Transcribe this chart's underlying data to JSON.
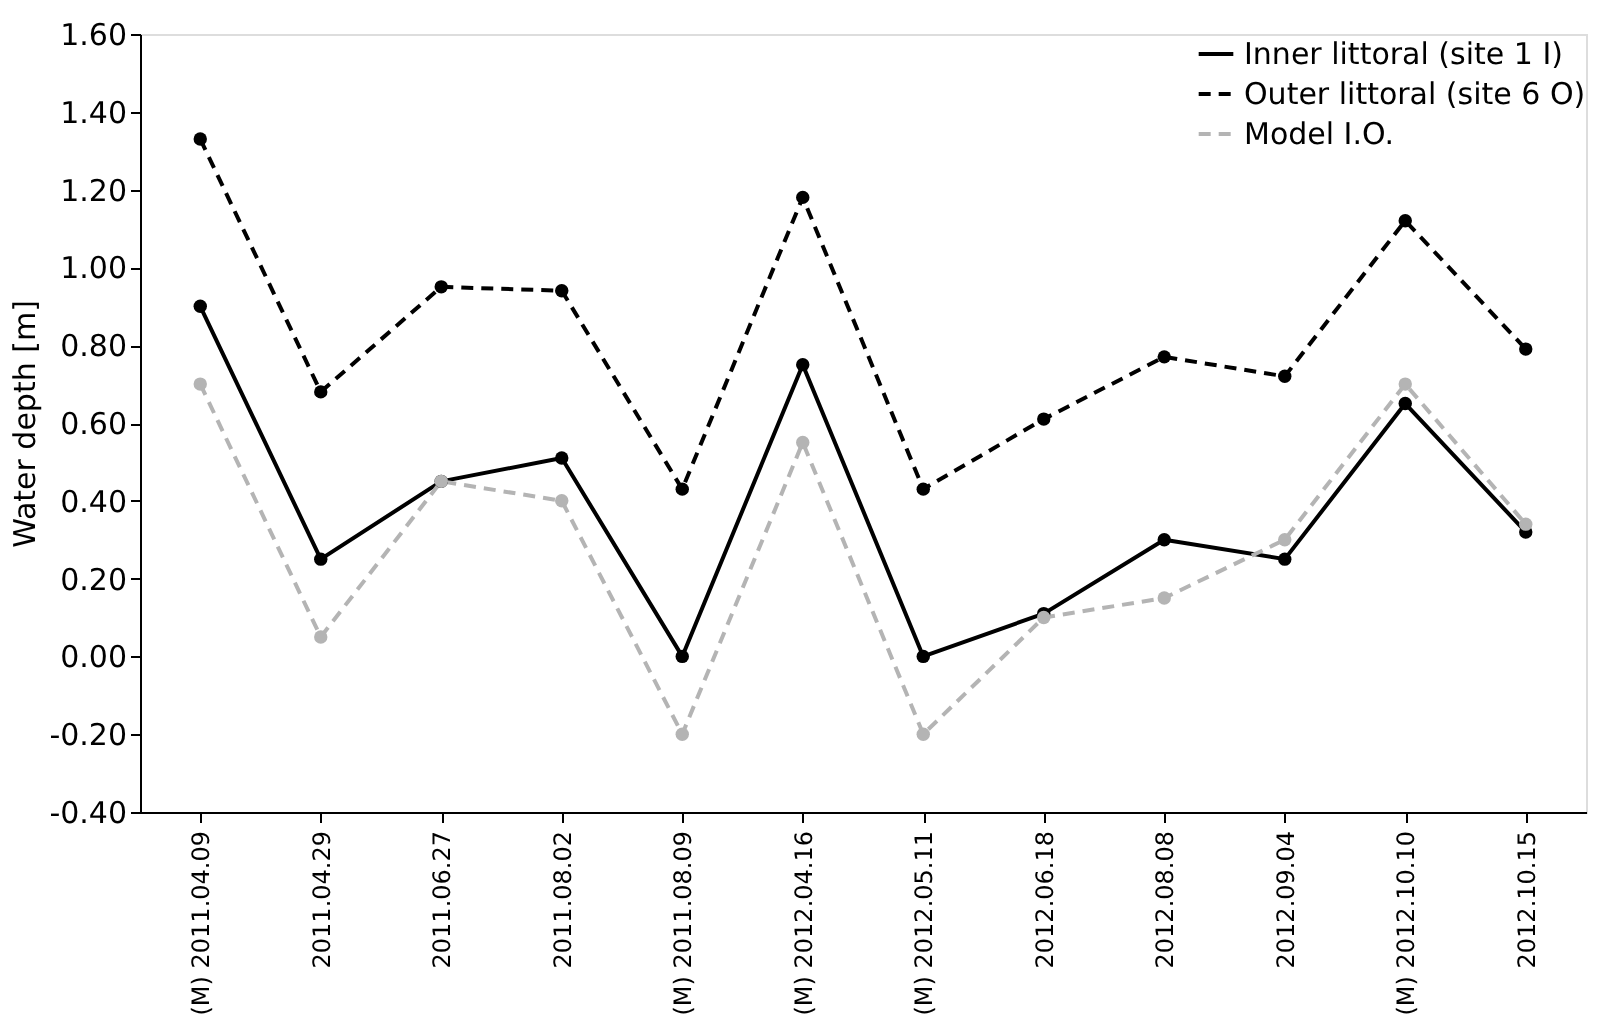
{
  "chart_data": {
    "type": "line",
    "ylabel": "Water depth [m]",
    "categories": [
      "(M) 2011.04.09",
      "2011.04.29",
      "2011.06.27",
      "2011.08.02",
      "(M) 2011.08.09",
      "(M) 2012.04.16",
      "(M) 2012.05.11",
      "2012.06.18",
      "2012.08.08",
      "2012.09.04",
      "(M) 2012.10.10",
      "2012.10.15"
    ],
    "series": [
      {
        "name": "Inner littoral (site 1 I)",
        "color": "#000000",
        "line_style": "solid",
        "values": [
          0.9,
          0.25,
          0.45,
          0.51,
          0.0,
          0.75,
          0.0,
          0.11,
          0.3,
          0.25,
          0.65,
          0.32
        ]
      },
      {
        "name": "Outer littoral (site 6 O)",
        "color": "#000000",
        "line_style": "dashed",
        "values": [
          1.33,
          0.68,
          0.95,
          0.94,
          0.43,
          1.18,
          0.43,
          0.61,
          0.77,
          0.72,
          1.12,
          0.79
        ]
      },
      {
        "name": "Model I.O.",
        "color": "#b4b4b4",
        "line_style": "dashed",
        "values": [
          0.7,
          0.05,
          0.45,
          0.4,
          -0.2,
          0.55,
          -0.2,
          0.1,
          0.15,
          0.3,
          0.7,
          0.34
        ]
      }
    ],
    "ylim": [
      -0.4,
      1.6
    ],
    "yticks": [
      {
        "value": -0.4,
        "label": "-0.40"
      },
      {
        "value": -0.2,
        "label": "-0.20"
      },
      {
        "value": 0,
        "label": "0.00"
      },
      {
        "value": 0.2,
        "label": "0.20"
      },
      {
        "value": 0.4,
        "label": "0.40"
      },
      {
        "value": 0.6,
        "label": "0.60"
      },
      {
        "value": 0.8,
        "label": "0.80"
      },
      {
        "value": 1.0,
        "label": "1.00"
      },
      {
        "value": 1.2,
        "label": "1.20"
      },
      {
        "value": 1.4,
        "label": "1.40"
      },
      {
        "value": 1.6,
        "label": "1.60"
      }
    ],
    "grid": false,
    "legend": "top right",
    "marker": "circle"
  }
}
